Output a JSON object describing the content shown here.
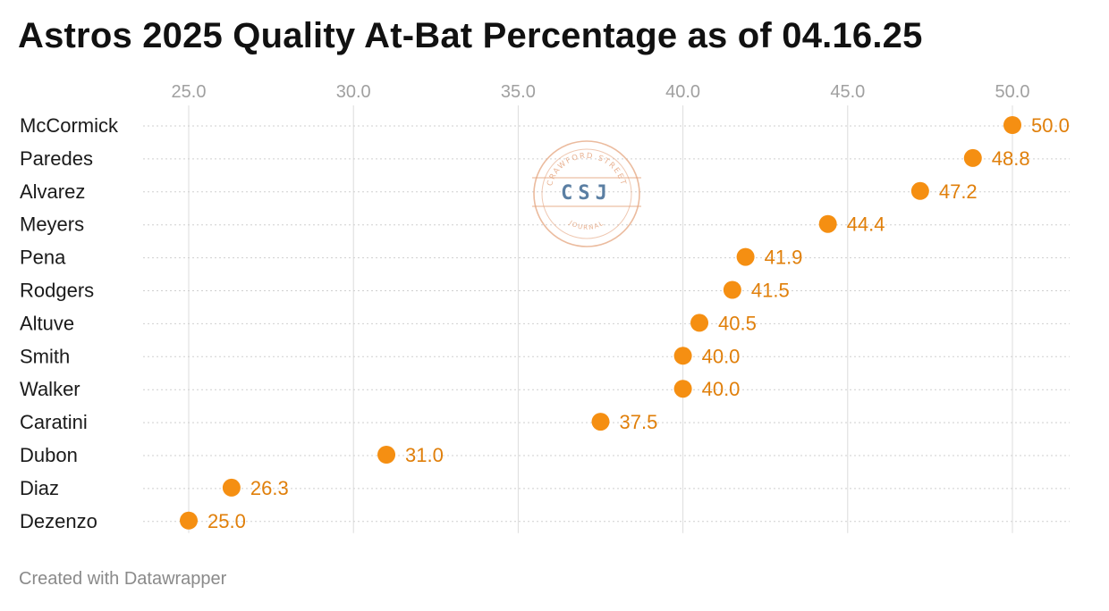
{
  "title": "Astros 2025 Quality At-Bat Percentage as of 04.16.25",
  "credit": "Created with Datawrapper",
  "watermark": {
    "initials": "CSJ",
    "top_text": "CRAWFORD STREET",
    "bottom_text": "JOURNAL",
    "color": "#e4a47e",
    "initials_color": "#5b7fa3"
  },
  "colors": {
    "dot": "#f58f12",
    "label": "#e07f0a",
    "grid": "#dcdcdc",
    "tick": "#a0a0a0",
    "row_line": "#cfcfcf"
  },
  "chart_data": {
    "type": "scatter",
    "title": "Astros 2025 Quality At-Bat Percentage as of 04.16.25",
    "xlabel": "",
    "ylabel": "",
    "xlim": [
      25,
      50
    ],
    "x_ticks": [
      25.0,
      30.0,
      35.0,
      40.0,
      45.0,
      50.0
    ],
    "x_tick_labels": [
      "25.0",
      "30.0",
      "35.0",
      "40.0",
      "45.0",
      "50.0"
    ],
    "grid": true,
    "categories": [
      "McCormick",
      "Paredes",
      "Alvarez",
      "Meyers",
      "Pena",
      "Rodgers",
      "Altuve",
      "Smith",
      "Walker",
      "Caratini",
      "Dubon",
      "Diaz",
      "Dezenzo"
    ],
    "values": [
      50.0,
      48.8,
      47.2,
      44.4,
      41.9,
      41.5,
      40.5,
      40.0,
      40.0,
      37.5,
      31.0,
      26.3,
      25.0
    ],
    "value_labels": [
      "50.0",
      "48.8",
      "47.2",
      "44.4",
      "41.9",
      "41.5",
      "40.5",
      "40.0",
      "40.0",
      "37.5",
      "31.0",
      "26.3",
      "25.0"
    ]
  }
}
